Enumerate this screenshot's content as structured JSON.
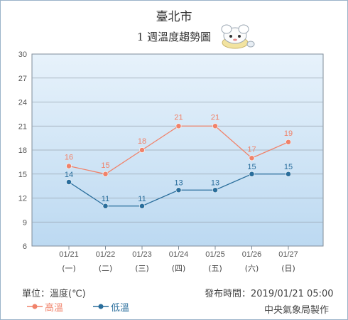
{
  "header": {
    "city": "臺北市",
    "subtitle": "1 週溫度趨勢圖"
  },
  "footer": {
    "unit": "單位：溫度(℃)",
    "published": "發布時間：2019/01/21 05:00",
    "credit": "中央氣象局製作"
  },
  "colors": {
    "high": "#f0826a",
    "low": "#2a6e9c",
    "plot_top": "#e7f2fb",
    "plot_bottom": "#bcd9f1",
    "grid": "#9aa6b2"
  },
  "chart_data": {
    "type": "line",
    "categories": [
      "01/21",
      "01/22",
      "01/23",
      "01/24",
      "01/25",
      "01/26",
      "01/27"
    ],
    "weekdays": [
      "(一)",
      "(二)",
      "(三)",
      "(四)",
      "(五)",
      "(六)",
      "(日)"
    ],
    "ylim": [
      6,
      30
    ],
    "yticks": [
      6,
      9,
      12,
      15,
      18,
      21,
      24,
      27,
      30
    ],
    "grid": true,
    "legend_position": "bottom-left",
    "series": [
      {
        "name": "高溫",
        "values": [
          16,
          15,
          18,
          21,
          21,
          17,
          19
        ]
      },
      {
        "name": "低溫",
        "values": [
          14,
          11,
          11,
          13,
          13,
          15,
          15
        ]
      }
    ]
  }
}
